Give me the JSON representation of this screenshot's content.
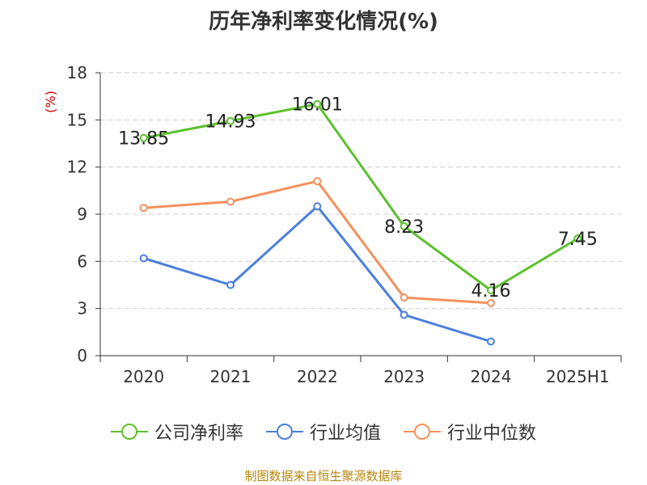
{
  "title": "历年净利率变化情况(%)",
  "source": "制图数据来自恒生聚源数据库",
  "colors": {
    "company": "#5bc12c",
    "industry_avg": "#4a7fdc",
    "industry_median": "#f4915e",
    "unit": "#cc0000",
    "grid": "#cccccc",
    "axis": "#333333"
  },
  "chart_data": {
    "type": "line",
    "title": "历年净利率变化情况(%)",
    "ylabel": "(%)",
    "xlabel": "",
    "categories": [
      "2020",
      "2021",
      "2022",
      "2023",
      "2024",
      "2025H1"
    ],
    "yticks": [
      0,
      3,
      6,
      9,
      12,
      15,
      18
    ],
    "ylim": [
      0,
      18
    ],
    "grid": true,
    "legend": "bottom",
    "series": [
      {
        "name": "公司净利率",
        "values": [
          13.85,
          14.93,
          16.01,
          8.23,
          4.16,
          7.45
        ],
        "labels": [
          "13.85",
          "14.93",
          "16.01",
          "8.23",
          "4.16",
          "7.45"
        ],
        "color": "#5bc12c"
      },
      {
        "name": "行业均值",
        "values": [
          6.2,
          4.5,
          9.5,
          2.6,
          0.9,
          null
        ],
        "color": "#4a7fdc"
      },
      {
        "name": "行业中位数",
        "values": [
          9.4,
          9.8,
          11.1,
          3.7,
          3.35,
          null
        ],
        "color": "#f4915e"
      }
    ]
  }
}
